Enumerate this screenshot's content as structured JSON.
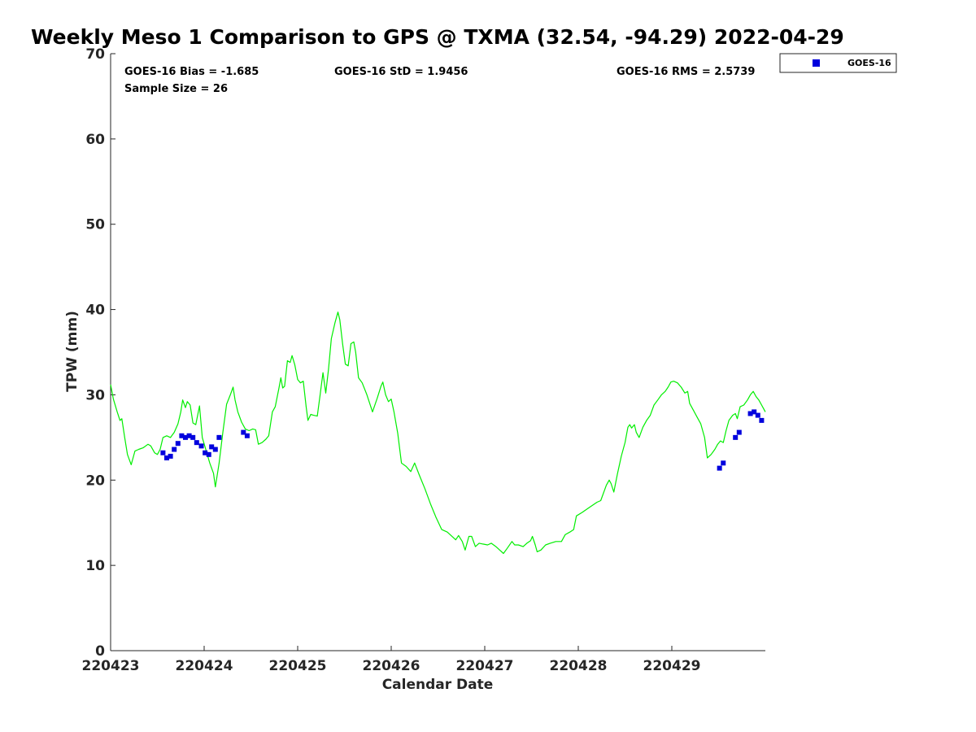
{
  "chart_data": {
    "type": "scatter",
    "title": "Weekly Meso 1 Comparison to GPS @ TXMA (32.54, -94.29) 2022-04-29",
    "xlabel": "Calendar Date",
    "ylabel": "TPW (mm)",
    "ylim": [
      0,
      70
    ],
    "xlim": [
      0,
      7
    ],
    "y_ticks": [
      0,
      10,
      20,
      30,
      40,
      50,
      60,
      70
    ],
    "x_ticks": [
      {
        "value": 0,
        "label": "220423"
      },
      {
        "value": 1,
        "label": "220424"
      },
      {
        "value": 2,
        "label": "220425"
      },
      {
        "value": 3,
        "label": "220426"
      },
      {
        "value": 4,
        "label": "220427"
      },
      {
        "value": 5,
        "label": "220428"
      },
      {
        "value": 6,
        "label": "220429"
      }
    ],
    "grid": false,
    "legend_position": "top-right",
    "stats": {
      "bias": "GOES-16 Bias = -1.685",
      "std": "GOES-16 StD = 1.9456",
      "rms": "GOES-16 RMS = 2.5739",
      "sample": "Sample Size = 26"
    },
    "series": [
      {
        "name": "GOES-16",
        "kind": "markers",
        "color": "#0000dd",
        "points": [
          [
            0.56,
            23.2
          ],
          [
            0.6,
            22.6
          ],
          [
            0.64,
            22.8
          ],
          [
            0.68,
            23.6
          ],
          [
            0.72,
            24.3
          ],
          [
            0.76,
            25.2
          ],
          [
            0.8,
            25.0
          ],
          [
            0.84,
            25.2
          ],
          [
            0.88,
            25.0
          ],
          [
            0.92,
            24.4
          ],
          [
            0.97,
            24.0
          ],
          [
            1.01,
            23.2
          ],
          [
            1.05,
            23.0
          ],
          [
            1.08,
            23.9
          ],
          [
            1.12,
            23.6
          ],
          [
            1.16,
            25.0
          ],
          [
            1.42,
            25.6
          ],
          [
            1.46,
            25.2
          ],
          [
            6.51,
            21.4
          ],
          [
            6.55,
            22.0
          ],
          [
            6.68,
            25.0
          ],
          [
            6.72,
            25.6
          ],
          [
            6.84,
            27.8
          ],
          [
            6.88,
            28.0
          ],
          [
            6.92,
            27.6
          ],
          [
            6.96,
            27.0
          ]
        ]
      },
      {
        "kind": "line",
        "color": "#00ee00",
        "points": [
          [
            0.0,
            31.2
          ],
          [
            0.03,
            29.5
          ],
          [
            0.07,
            28.0
          ],
          [
            0.1,
            27.0
          ],
          [
            0.12,
            27.2
          ],
          [
            0.15,
            25.0
          ],
          [
            0.18,
            23.0
          ],
          [
            0.22,
            21.8
          ],
          [
            0.26,
            23.4
          ],
          [
            0.3,
            23.6
          ],
          [
            0.35,
            23.8
          ],
          [
            0.4,
            24.2
          ],
          [
            0.43,
            24.0
          ],
          [
            0.47,
            23.2
          ],
          [
            0.5,
            23.0
          ],
          [
            0.53,
            23.6
          ],
          [
            0.56,
            25.0
          ],
          [
            0.6,
            25.2
          ],
          [
            0.64,
            25.0
          ],
          [
            0.68,
            25.6
          ],
          [
            0.72,
            26.6
          ],
          [
            0.75,
            28.0
          ],
          [
            0.77,
            29.4
          ],
          [
            0.8,
            28.5
          ],
          [
            0.82,
            29.2
          ],
          [
            0.85,
            28.8
          ],
          [
            0.88,
            26.7
          ],
          [
            0.91,
            26.5
          ],
          [
            0.95,
            28.7
          ],
          [
            0.98,
            25.0
          ],
          [
            1.02,
            23.5
          ],
          [
            1.06,
            22.0
          ],
          [
            1.1,
            20.8
          ],
          [
            1.12,
            19.2
          ],
          [
            1.16,
            22.0
          ],
          [
            1.2,
            25.6
          ],
          [
            1.24,
            28.9
          ],
          [
            1.28,
            30.0
          ],
          [
            1.31,
            30.9
          ],
          [
            1.33,
            29.4
          ],
          [
            1.36,
            28.0
          ],
          [
            1.4,
            26.8
          ],
          [
            1.44,
            26.0
          ],
          [
            1.48,
            25.8
          ],
          [
            1.52,
            26.0
          ],
          [
            1.55,
            25.9
          ],
          [
            1.58,
            24.2
          ],
          [
            1.62,
            24.4
          ],
          [
            1.66,
            24.8
          ],
          [
            1.69,
            25.2
          ],
          [
            1.73,
            28.0
          ],
          [
            1.76,
            28.6
          ],
          [
            1.8,
            30.8
          ],
          [
            1.82,
            32.0
          ],
          [
            1.84,
            30.8
          ],
          [
            1.86,
            31.0
          ],
          [
            1.89,
            34.0
          ],
          [
            1.92,
            33.8
          ],
          [
            1.94,
            34.6
          ],
          [
            1.97,
            33.5
          ],
          [
            2.0,
            31.8
          ],
          [
            2.03,
            31.4
          ],
          [
            2.06,
            31.6
          ],
          [
            2.09,
            28.6
          ],
          [
            2.11,
            27.0
          ],
          [
            2.14,
            27.7
          ],
          [
            2.17,
            27.6
          ],
          [
            2.21,
            27.5
          ],
          [
            2.24,
            30.0
          ],
          [
            2.27,
            32.6
          ],
          [
            2.3,
            30.2
          ],
          [
            2.33,
            33.0
          ],
          [
            2.36,
            36.6
          ],
          [
            2.4,
            38.5
          ],
          [
            2.43,
            39.7
          ],
          [
            2.45,
            38.8
          ],
          [
            2.48,
            36.0
          ],
          [
            2.51,
            33.6
          ],
          [
            2.54,
            33.4
          ],
          [
            2.57,
            36.0
          ],
          [
            2.6,
            36.2
          ],
          [
            2.62,
            35.0
          ],
          [
            2.65,
            32.0
          ],
          [
            2.69,
            31.4
          ],
          [
            2.74,
            30.0
          ],
          [
            2.8,
            28.0
          ],
          [
            2.85,
            29.6
          ],
          [
            2.89,
            31.0
          ],
          [
            2.91,
            31.5
          ],
          [
            2.94,
            30.0
          ],
          [
            2.97,
            29.2
          ],
          [
            3.0,
            29.5
          ],
          [
            3.03,
            28.0
          ],
          [
            3.07,
            25.5
          ],
          [
            3.11,
            22.0
          ],
          [
            3.16,
            21.6
          ],
          [
            3.21,
            21.0
          ],
          [
            3.25,
            22.0
          ],
          [
            3.3,
            20.6
          ],
          [
            3.36,
            19.0
          ],
          [
            3.42,
            17.2
          ],
          [
            3.48,
            15.6
          ],
          [
            3.54,
            14.2
          ],
          [
            3.6,
            13.9
          ],
          [
            3.64,
            13.5
          ],
          [
            3.69,
            13.0
          ],
          [
            3.72,
            13.5
          ],
          [
            3.76,
            12.8
          ],
          [
            3.79,
            11.8
          ],
          [
            3.83,
            13.4
          ],
          [
            3.86,
            13.4
          ],
          [
            3.9,
            12.2
          ],
          [
            3.94,
            12.6
          ],
          [
            3.98,
            12.5
          ],
          [
            4.03,
            12.4
          ],
          [
            4.07,
            12.6
          ],
          [
            4.12,
            12.2
          ],
          [
            4.16,
            11.8
          ],
          [
            4.2,
            11.4
          ],
          [
            4.24,
            12.0
          ],
          [
            4.29,
            12.8
          ],
          [
            4.32,
            12.4
          ],
          [
            4.36,
            12.4
          ],
          [
            4.41,
            12.2
          ],
          [
            4.45,
            12.6
          ],
          [
            4.49,
            12.9
          ],
          [
            4.51,
            13.4
          ],
          [
            4.54,
            12.4
          ],
          [
            4.56,
            11.6
          ],
          [
            4.6,
            11.8
          ],
          [
            4.65,
            12.4
          ],
          [
            4.7,
            12.6
          ],
          [
            4.76,
            12.8
          ],
          [
            4.82,
            12.8
          ],
          [
            4.86,
            13.6
          ],
          [
            4.91,
            13.9
          ],
          [
            4.95,
            14.2
          ],
          [
            4.98,
            15.8
          ],
          [
            5.04,
            16.2
          ],
          [
            5.12,
            16.8
          ],
          [
            5.2,
            17.4
          ],
          [
            5.24,
            17.6
          ],
          [
            5.3,
            19.4
          ],
          [
            5.33,
            20.0
          ],
          [
            5.35,
            19.6
          ],
          [
            5.38,
            18.6
          ],
          [
            5.42,
            20.8
          ],
          [
            5.46,
            22.8
          ],
          [
            5.5,
            24.4
          ],
          [
            5.53,
            26.2
          ],
          [
            5.55,
            26.5
          ],
          [
            5.57,
            26.1
          ],
          [
            5.6,
            26.5
          ],
          [
            5.62,
            25.6
          ],
          [
            5.65,
            25.0
          ],
          [
            5.69,
            26.2
          ],
          [
            5.73,
            27.0
          ],
          [
            5.77,
            27.6
          ],
          [
            5.81,
            28.8
          ],
          [
            5.85,
            29.4
          ],
          [
            5.89,
            30.0
          ],
          [
            5.93,
            30.4
          ],
          [
            5.96,
            30.9
          ],
          [
            5.99,
            31.5
          ],
          [
            6.02,
            31.6
          ],
          [
            6.06,
            31.4
          ],
          [
            6.1,
            30.9
          ],
          [
            6.14,
            30.2
          ],
          [
            6.17,
            30.4
          ],
          [
            6.19,
            29.0
          ],
          [
            6.23,
            28.2
          ],
          [
            6.27,
            27.4
          ],
          [
            6.31,
            26.6
          ],
          [
            6.35,
            25.0
          ],
          [
            6.38,
            22.6
          ],
          [
            6.42,
            23.0
          ],
          [
            6.46,
            23.6
          ],
          [
            6.49,
            24.2
          ],
          [
            6.52,
            24.6
          ],
          [
            6.55,
            24.4
          ],
          [
            6.58,
            25.8
          ],
          [
            6.61,
            27.0
          ],
          [
            6.65,
            27.6
          ],
          [
            6.68,
            27.8
          ],
          [
            6.7,
            27.2
          ],
          [
            6.73,
            28.6
          ],
          [
            6.77,
            28.8
          ],
          [
            6.81,
            29.4
          ],
          [
            6.84,
            30.0
          ],
          [
            6.87,
            30.4
          ],
          [
            6.9,
            29.8
          ],
          [
            6.93,
            29.4
          ],
          [
            6.96,
            28.8
          ],
          [
            6.98,
            28.4
          ],
          [
            7.0,
            28.0
          ]
        ]
      }
    ]
  }
}
